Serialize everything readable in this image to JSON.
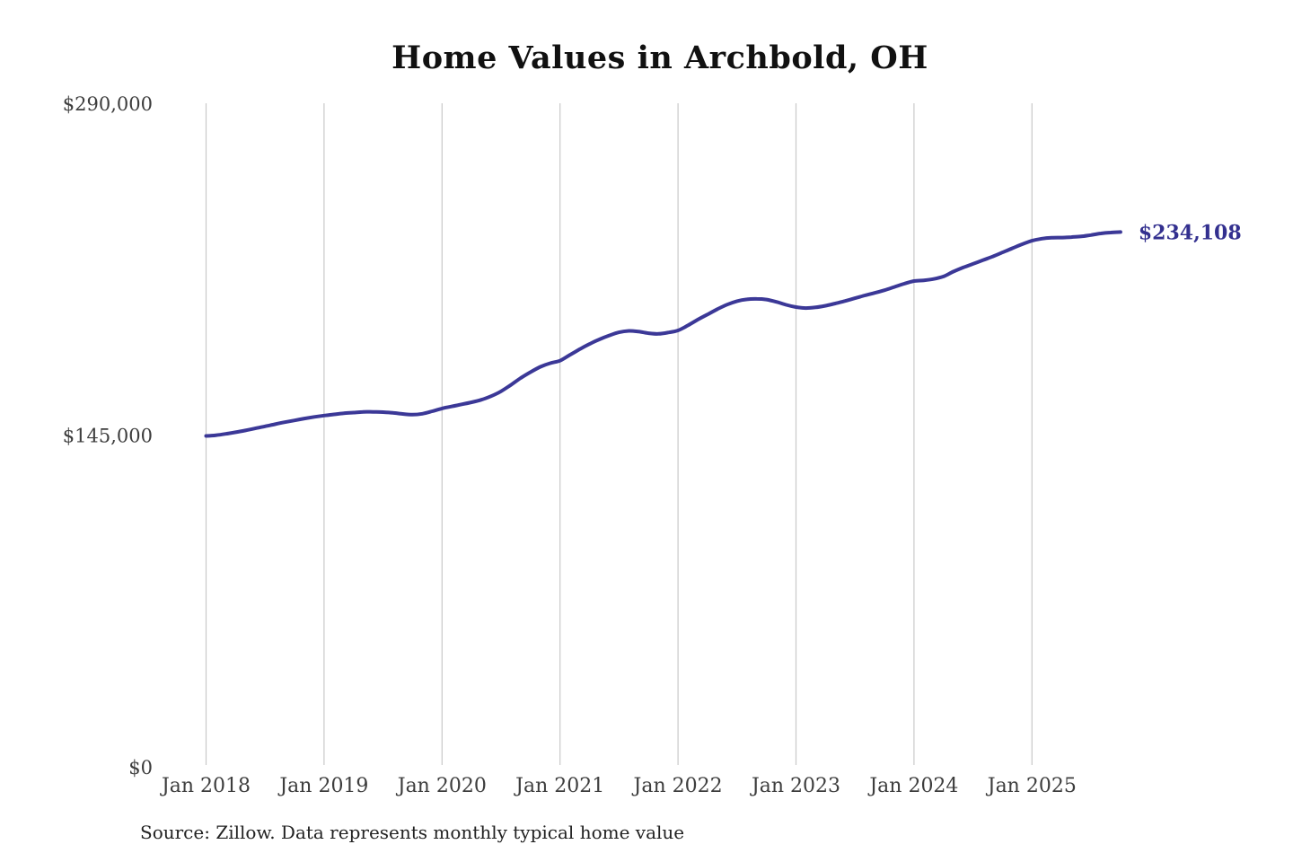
{
  "chart": {
    "title": "Home Values in Archbold, OH",
    "source_note": "Source: Zillow. Data represents monthly typical home value",
    "end_label": "$234,108",
    "colors": {
      "line": "#3b3897",
      "end_label": "#33308f",
      "gridline": "#c9c9c9",
      "axis_text": "#3d3d3d",
      "title_text": "#111111",
      "source_text": "#222222",
      "background": "#ffffff"
    }
  },
  "chart_data": {
    "type": "line",
    "title": "Home Values in Archbold, OH",
    "xlabel": "",
    "ylabel": "",
    "ylim": [
      0,
      290000
    ],
    "grid": "vertical-only",
    "legend": "none",
    "x_cadence": "monthly",
    "x_start_month": "Jan 2018",
    "x_end_month": "Oct 2025",
    "x_tick_labels": [
      "Jan 2018",
      "Jan 2019",
      "Jan 2020",
      "Jan 2021",
      "Jan 2022",
      "Jan 2023",
      "Jan 2024",
      "Jan 2025"
    ],
    "y_ticks": [
      0,
      145000,
      290000
    ],
    "y_tick_labels": [
      "$0",
      "$145,000",
      "$290,000"
    ],
    "final_value": 234108,
    "final_value_label": "$234,108",
    "series": [
      {
        "name": "Monthly typical home value",
        "values": [
          145000,
          145300,
          145900,
          146600,
          147400,
          148300,
          149200,
          150100,
          151000,
          151800,
          152600,
          153300,
          153900,
          154400,
          154900,
          155200,
          155500,
          155500,
          155400,
          155100,
          154600,
          154300,
          154700,
          155800,
          157000,
          157900,
          158800,
          159700,
          160800,
          162400,
          164500,
          167300,
          170300,
          172900,
          175200,
          176800,
          177900,
          180400,
          182900,
          185200,
          187200,
          188900,
          190300,
          190900,
          190600,
          189900,
          189600,
          190200,
          191100,
          193300,
          195800,
          198100,
          200400,
          202400,
          203900,
          204700,
          204900,
          204600,
          203600,
          202300,
          201300,
          200900,
          201200,
          201900,
          202900,
          204000,
          205200,
          206400,
          207500,
          208700,
          210100,
          211500,
          212700,
          213000,
          213600,
          214700,
          216800,
          218600,
          220200,
          221800,
          223400,
          225200,
          227000,
          228800,
          230300,
          231200,
          231600,
          231700,
          231900,
          232200,
          232800,
          233500,
          233900,
          234108
        ]
      }
    ]
  }
}
